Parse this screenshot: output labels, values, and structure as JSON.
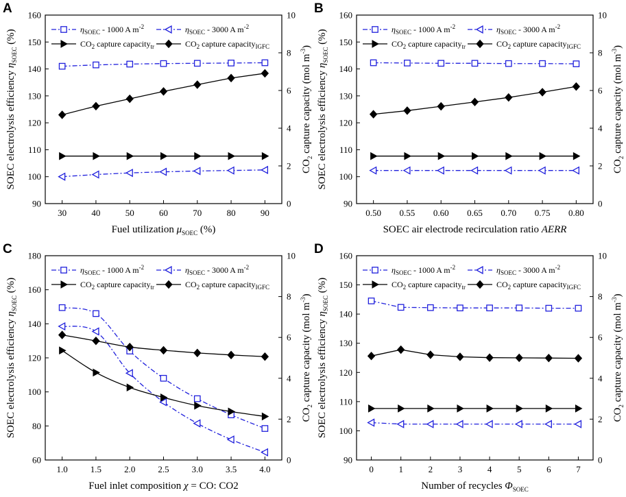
{
  "figure": {
    "width": 913,
    "height": 725,
    "colors": {
      "blue": "#1f1fdc",
      "black": "#000000"
    }
  },
  "chart_data": [
    {
      "panel": "A",
      "type": "line",
      "x": [
        30,
        40,
        50,
        60,
        70,
        80,
        90
      ],
      "x_ticks": [
        30,
        40,
        50,
        60,
        70,
        80,
        90
      ],
      "xlim": [
        25,
        95
      ],
      "xlabel": {
        "main": "Fuel utilization ",
        "italic": "μ",
        "sub": "SOEC",
        "tail": " (%)"
      },
      "y_left_ticks": [
        90,
        100,
        110,
        120,
        130,
        140,
        150,
        160
      ],
      "ylim_left": [
        90,
        160
      ],
      "y_right_ticks": [
        0,
        2,
        4,
        6,
        8,
        10
      ],
      "ylim_right": [
        0,
        10
      ],
      "series": [
        {
          "name": "ηSOEC - 1000 A m-2",
          "axis": "left",
          "marker": "square",
          "style": "dashdot",
          "color": "blue",
          "values": [
            141.0,
            141.5,
            141.8,
            142.0,
            142.1,
            142.2,
            142.3
          ]
        },
        {
          "name": "ηSOEC - 3000 A m-2",
          "axis": "left",
          "marker": "tri-left",
          "style": "dashdot",
          "color": "blue",
          "values": [
            100.0,
            100.8,
            101.4,
            101.8,
            102.1,
            102.3,
            102.5
          ]
        },
        {
          "name": "CO2 capture capacity_tr",
          "axis": "right",
          "marker": "tri-right",
          "style": "solid",
          "color": "black",
          "values": [
            2.52,
            2.52,
            2.52,
            2.52,
            2.52,
            2.52,
            2.52
          ]
        },
        {
          "name": "CO2 capture capacity_IGFC",
          "axis": "right",
          "marker": "diamond",
          "style": "solid",
          "color": "black",
          "values": [
            4.71,
            5.17,
            5.56,
            5.95,
            6.31,
            6.66,
            6.91
          ]
        }
      ]
    },
    {
      "panel": "B",
      "type": "line",
      "x": [
        0.5,
        0.55,
        0.6,
        0.65,
        0.7,
        0.75,
        0.8
      ],
      "x_ticks": [
        0.5,
        0.55,
        0.6,
        0.65,
        0.7,
        0.75,
        0.8
      ],
      "x_tick_labels": [
        "0.50",
        "0.55",
        "0.60",
        "0.65",
        "0.70",
        "0.75",
        "0.80"
      ],
      "xlim": [
        0.475,
        0.825
      ],
      "xlabel": {
        "main": "SOEC air electrode recirculation ratio ",
        "italic": "AERR",
        "sub": "",
        "tail": ""
      },
      "y_left_ticks": [
        90,
        100,
        110,
        120,
        130,
        140,
        150,
        160
      ],
      "ylim_left": [
        90,
        160
      ],
      "y_right_ticks": [
        0,
        2,
        4,
        6,
        8,
        10
      ],
      "ylim_right": [
        0,
        10
      ],
      "series": [
        {
          "name": "ηSOEC - 1000 A m-2",
          "axis": "left",
          "marker": "square",
          "style": "dashdot",
          "color": "blue",
          "values": [
            142.3,
            142.2,
            142.1,
            142.1,
            142.0,
            142.0,
            141.9
          ]
        },
        {
          "name": "ηSOEC - 3000 A m-2",
          "axis": "left",
          "marker": "tri-left",
          "style": "dashdot",
          "color": "blue",
          "values": [
            102.3,
            102.3,
            102.3,
            102.3,
            102.3,
            102.3,
            102.3
          ]
        },
        {
          "name": "CO2 capture capacity_tr",
          "axis": "right",
          "marker": "tri-right",
          "style": "solid",
          "color": "black",
          "values": [
            2.52,
            2.52,
            2.52,
            2.52,
            2.52,
            2.52,
            2.52
          ]
        },
        {
          "name": "CO2 capture capacity_IGFC",
          "axis": "right",
          "marker": "diamond",
          "style": "solid",
          "color": "black",
          "values": [
            4.74,
            4.93,
            5.16,
            5.39,
            5.63,
            5.91,
            6.21
          ]
        }
      ]
    },
    {
      "panel": "C",
      "type": "line",
      "x": [
        1.0,
        1.5,
        2.0,
        2.5,
        3.0,
        3.5,
        4.0
      ],
      "x_ticks": [
        1.0,
        1.5,
        2.0,
        2.5,
        3.0,
        3.5,
        4.0
      ],
      "x_tick_labels": [
        "1.0",
        "1.5",
        "2.0",
        "2.5",
        "3.0",
        "3.5",
        "4.0"
      ],
      "xlim": [
        0.75,
        4.25
      ],
      "xlabel": {
        "main": "Fuel inlet composition ",
        "italic": "χ",
        "sub": "",
        "tail": " = CO: CO2"
      },
      "y_left_ticks": [
        60,
        80,
        100,
        120,
        140,
        160,
        180
      ],
      "ylim_left": [
        60,
        180
      ],
      "y_right_ticks": [
        0,
        2,
        4,
        6,
        8,
        10
      ],
      "ylim_right": [
        0,
        10
      ],
      "series": [
        {
          "name": "ηSOEC - 1000 A m-2",
          "axis": "left",
          "marker": "square",
          "style": "dashdot",
          "color": "blue",
          "values": [
            149.5,
            146.0,
            124.0,
            108.0,
            96.0,
            86.5,
            78.5
          ]
        },
        {
          "name": "ηSOEC - 3000 A m-2",
          "axis": "left",
          "marker": "tri-left",
          "style": "dashdot",
          "color": "blue",
          "values": [
            138.5,
            135.5,
            111.0,
            94.0,
            81.5,
            72.0,
            64.5
          ]
        },
        {
          "name": "CO2 capture capacity_tr",
          "axis": "right",
          "marker": "tri-right",
          "style": "solid",
          "color": "black",
          "values": [
            5.36,
            4.28,
            3.55,
            3.06,
            2.66,
            2.37,
            2.13
          ]
        },
        {
          "name": "CO2 capture capacity_IGFC",
          "axis": "right",
          "marker": "diamond",
          "style": "solid",
          "color": "black",
          "values": [
            6.12,
            5.83,
            5.53,
            5.37,
            5.24,
            5.14,
            5.06
          ]
        }
      ]
    },
    {
      "panel": "D",
      "type": "line",
      "x": [
        0,
        1,
        2,
        3,
        4,
        5,
        6,
        7
      ],
      "x_ticks": [
        0,
        1,
        2,
        3,
        4,
        5,
        6,
        7
      ],
      "xlim": [
        -0.5,
        7.5
      ],
      "xlabel": {
        "main": "Number of recycles ",
        "italic": "Φ",
        "sub": "SOEC",
        "tail": ""
      },
      "y_left_ticks": [
        90,
        100,
        110,
        120,
        130,
        140,
        150,
        160
      ],
      "ylim_left": [
        90,
        160
      ],
      "y_right_ticks": [
        0,
        2,
        4,
        6,
        8,
        10
      ],
      "ylim_right": [
        0,
        10
      ],
      "series": [
        {
          "name": "ηSOEC - 1000 A m-2",
          "axis": "left",
          "marker": "square",
          "style": "dashdot",
          "color": "blue",
          "values": [
            144.5,
            142.3,
            142.2,
            142.1,
            142.1,
            142.1,
            142.0,
            142.0
          ]
        },
        {
          "name": "ηSOEC - 3000 A m-2",
          "axis": "left",
          "marker": "tri-left",
          "style": "dashdot",
          "color": "blue",
          "values": [
            102.8,
            102.3,
            102.3,
            102.3,
            102.3,
            102.3,
            102.3,
            102.3
          ]
        },
        {
          "name": "CO2 capture capacity_tr",
          "axis": "right",
          "marker": "tri-right",
          "style": "solid",
          "color": "black",
          "values": [
            2.52,
            2.52,
            2.52,
            2.52,
            2.52,
            2.52,
            2.52,
            2.52
          ]
        },
        {
          "name": "CO2 capture capacity_IGFC",
          "axis": "right",
          "marker": "diamond",
          "style": "solid",
          "color": "black",
          "values": [
            5.09,
            5.4,
            5.15,
            5.05,
            5.01,
            5.0,
            4.99,
            4.98
          ]
        }
      ]
    }
  ],
  "shared_text": {
    "y_left_title": {
      "main": "SOEC electrolysis efficiency ",
      "italic": "η",
      "sub": "SOEC",
      "tail": " (%)"
    },
    "y_right_title": {
      "pre": "CO",
      "sub": "2",
      "mid": " capture capacity (mol m",
      "sup": "-3",
      "tail": ")"
    },
    "legend": {
      "eta_sym": "η",
      "eta_sub": "SOEC",
      "l1_text": " - 1000 A m",
      "l2_text": " - 3000 A m",
      "sup": "-2",
      "co2_pre": "CO",
      "co2_sub": "2",
      "co2_mid": " capture capacity",
      "tr_sub": "tr",
      "igfc_sub": "IGFC"
    }
  }
}
